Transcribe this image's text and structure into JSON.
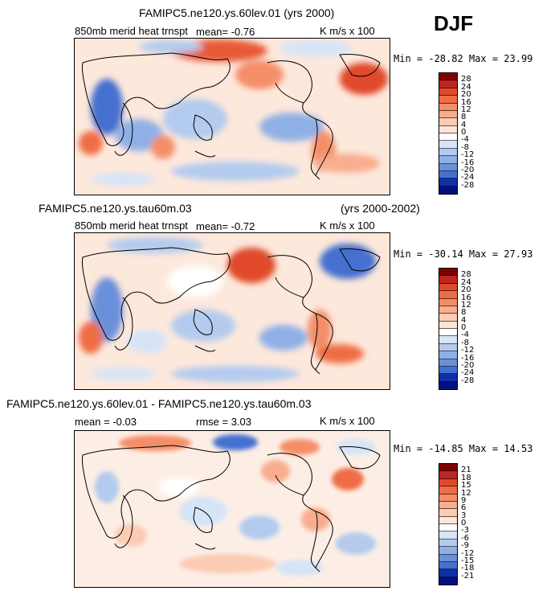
{
  "season": "DJF",
  "panels": [
    {
      "title": "FAMIPC5.ne120.ys.60lev.01 (yrs 2000)",
      "variable": "850mb merid heat trnspt",
      "mean_text": "mean=   -0.76",
      "units": "K m/s x 100",
      "minmax": "Min = -28.82  Max =   23.99",
      "colorbar_labels": [
        "28",
        "24",
        "20",
        "16",
        "12",
        "8",
        "4",
        "0",
        "-4",
        "-8",
        "-12",
        "-16",
        "-20",
        "-24",
        "-28"
      ]
    },
    {
      "title": "FAMIPC5.ne120.ys.tau60m.03",
      "title_right": "(yrs 2000-2002)",
      "variable": "850mb merid heat trnspt",
      "mean_text": "mean=   -0.72",
      "units": "K m/s x 100",
      "minmax": "Min = -30.14  Max =   27.93",
      "colorbar_labels": [
        "28",
        "24",
        "20",
        "16",
        "12",
        "8",
        "4",
        "0",
        "-4",
        "-8",
        "-12",
        "-16",
        "-20",
        "-24",
        "-28"
      ]
    },
    {
      "title": "FAMIPC5.ne120.ys.60lev.01 - FAMIPC5.ne120.ys.tau60m.03",
      "mean_text": "mean =   -0.03",
      "rmse_text": "rmse =   3.03",
      "units": "K m/s x 100",
      "minmax": "Min = -14.85  Max =   14.53",
      "colorbar_labels": [
        "21",
        "18",
        "15",
        "12",
        "9",
        "6",
        "3",
        "0",
        "-3",
        "-6",
        "-9",
        "-12",
        "-15",
        "-18",
        "-21"
      ]
    }
  ],
  "colors": {
    "palette": [
      "#7f0000",
      "#c0261f",
      "#e0492a",
      "#ef6d45",
      "#f48e68",
      "#f8ad8f",
      "#fbcbb3",
      "#fde6d8",
      "#ffffff",
      "#d6e4f7",
      "#b3cbef",
      "#8fb0e6",
      "#6a90da",
      "#4470cf",
      "#2550c0",
      "#1030a8",
      "#001080"
    ],
    "coast": "#000000"
  }
}
